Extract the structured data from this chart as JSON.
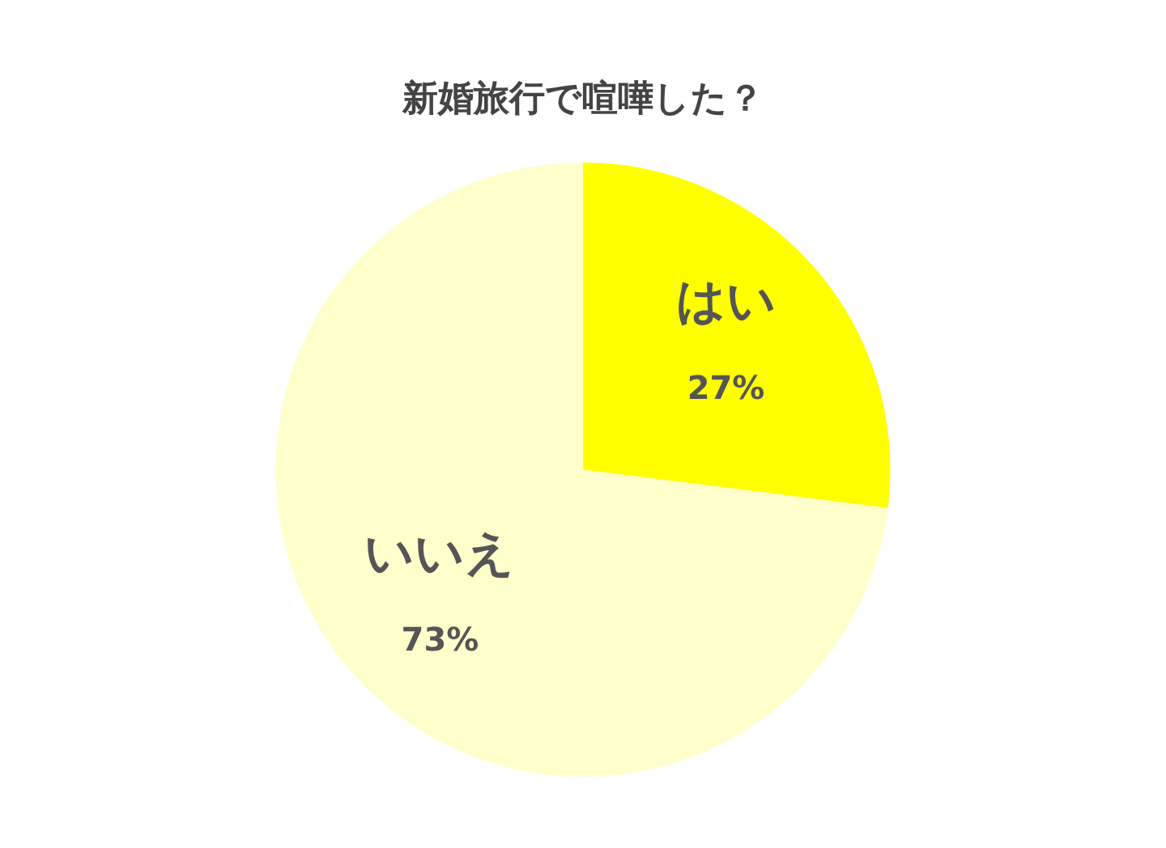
{
  "chart_data": {
    "type": "pie",
    "title": "新婚旅行で喧嘩した？",
    "categories": [
      "はい",
      "いいえ"
    ],
    "values": [
      27,
      73
    ],
    "value_labels": [
      "27%",
      "73%"
    ],
    "colors": [
      "#ffff00",
      "#ffffcc"
    ],
    "legend": false
  }
}
